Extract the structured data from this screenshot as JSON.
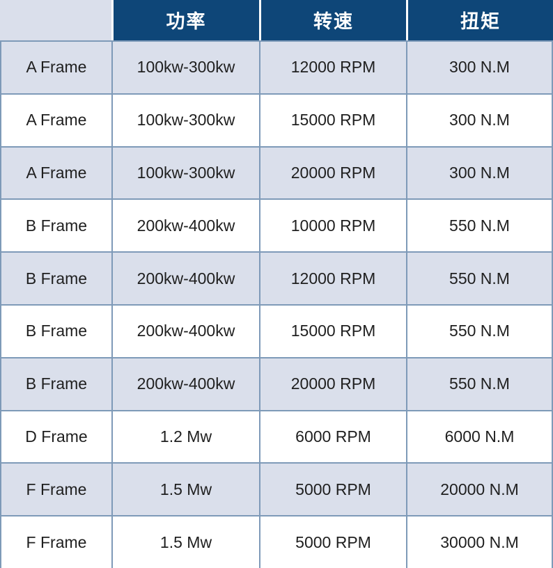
{
  "colors": {
    "header_bg": "#0e4678",
    "header_text": "#ffffff",
    "band_bg": "#dadfeb",
    "grid_border": "#7e9ab8",
    "header_separator": "#ffffff",
    "body_text": "#1f1f1f"
  },
  "chart_data": {
    "type": "table",
    "title": "",
    "columns": [
      "",
      "功率",
      "转速",
      "扭矩"
    ],
    "rows": [
      [
        "A Frame",
        "100kw-300kw",
        "12000 RPM",
        "300 N.M"
      ],
      [
        "A Frame",
        "100kw-300kw",
        "15000 RPM",
        "300 N.M"
      ],
      [
        "A Frame",
        "100kw-300kw",
        "20000 RPM",
        "300 N.M"
      ],
      [
        "B Frame",
        "200kw-400kw",
        "10000 RPM",
        "550 N.M"
      ],
      [
        "B Frame",
        "200kw-400kw",
        "12000 RPM",
        "550 N.M"
      ],
      [
        "B Frame",
        "200kw-400kw",
        "15000 RPM",
        "550 N.M"
      ],
      [
        "B Frame",
        "200kw-400kw",
        "20000 RPM",
        "550 N.M"
      ],
      [
        "D Frame",
        "1.2 Mw",
        "6000 RPM",
        "6000 N.M"
      ],
      [
        "F Frame",
        "1.5 Mw",
        "5000 RPM",
        "20000 N.M"
      ],
      [
        "F Frame",
        "1.5 Mw",
        "5000 RPM",
        "30000 N.M"
      ]
    ],
    "layout": {
      "banded_rows": "odd rows shaded",
      "grid": true,
      "header_position": "top"
    }
  }
}
